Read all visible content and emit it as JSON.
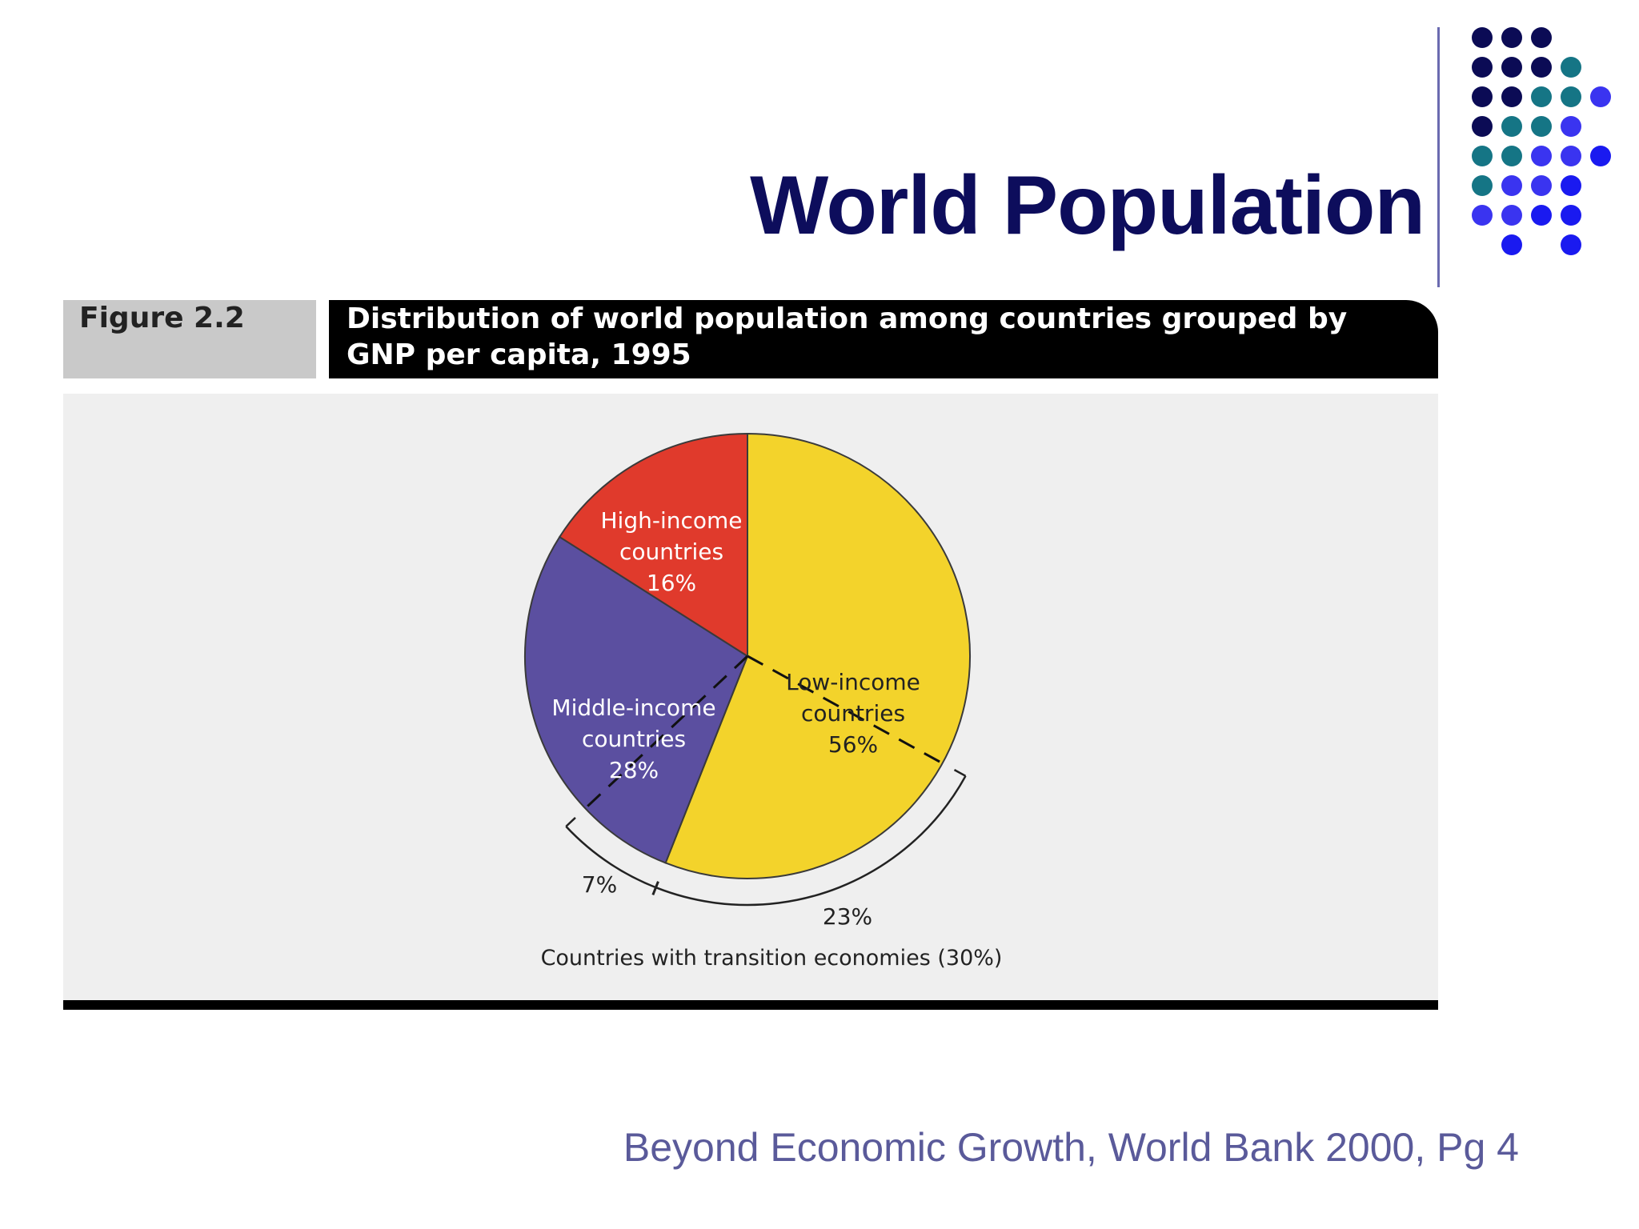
{
  "slide": {
    "title": "World Population",
    "source": "Beyond Economic Growth, World Bank 2000, Pg 4"
  },
  "figure": {
    "label": "Figure 2.2",
    "title": "Distribution of world population among countries grouped by GNP per capita, 1995"
  },
  "chart_data": {
    "type": "pie",
    "title": "Distribution of world population among countries grouped by GNP per capita, 1995",
    "slices": [
      {
        "name": "Low-income countries",
        "label_lines": [
          "Low-income",
          "countries",
          "56%"
        ],
        "value": 56,
        "color": "#f3d32b"
      },
      {
        "name": "Middle-income countries",
        "label_lines": [
          "Middle-income",
          "countries",
          "28%"
        ],
        "value": 28,
        "color": "#5b4fa0"
      },
      {
        "name": "High-income countries",
        "label_lines": [
          "High-income",
          "countries",
          "16%"
        ],
        "value": 16,
        "color": "#e03a2c"
      }
    ],
    "transition_economies": {
      "label": "Countries with transition economies (30%)",
      "value": 30,
      "parts": [
        {
          "label": "7%",
          "value": 7,
          "of": "Middle-income countries"
        },
        {
          "label": "23%",
          "value": 23,
          "of": "Low-income countries"
        }
      ]
    }
  },
  "colors": {
    "title": "#0d0d5c",
    "source": "#5a5a9a",
    "dot_navy": "#0b0b55",
    "dot_teal": "#157585",
    "dot_blue": "#3a34f0",
    "dot_bright": "#1a1af0"
  }
}
